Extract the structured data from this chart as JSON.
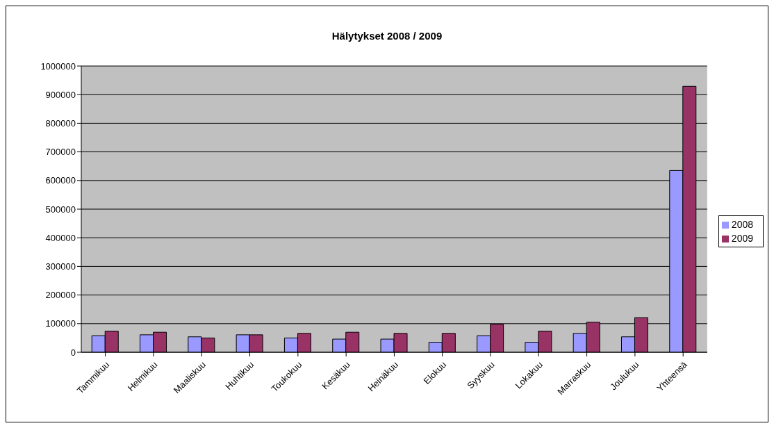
{
  "chart_data": {
    "type": "bar",
    "title": "Hälytykset 2008 / 2009",
    "categories": [
      "Tammikuu",
      "Helmikuu",
      "Maaliskuu",
      "Huhtikuu",
      "Toukokuu",
      "Kesäkuu",
      "Heinäkuu",
      "Elokuu",
      "Syyskuu",
      "Lokakuu",
      "Marraskuu",
      "Joulukuu",
      "Yhteensä"
    ],
    "series": [
      {
        "name": "2008",
        "color": "#9999ff",
        "values": [
          58000,
          61000,
          54000,
          61000,
          50000,
          46000,
          46000,
          35000,
          58000,
          35000,
          66000,
          54000,
          635000
        ]
      },
      {
        "name": "2009",
        "color": "#993366",
        "values": [
          74000,
          70000,
          50000,
          61000,
          66000,
          70000,
          66000,
          66000,
          98000,
          74000,
          105000,
          121000,
          929000
        ]
      }
    ],
    "ylim": [
      0,
      1000000
    ],
    "yticks": [
      0,
      100000,
      200000,
      300000,
      400000,
      500000,
      600000,
      700000,
      800000,
      900000,
      1000000
    ],
    "grid": "y",
    "legend": "right"
  }
}
